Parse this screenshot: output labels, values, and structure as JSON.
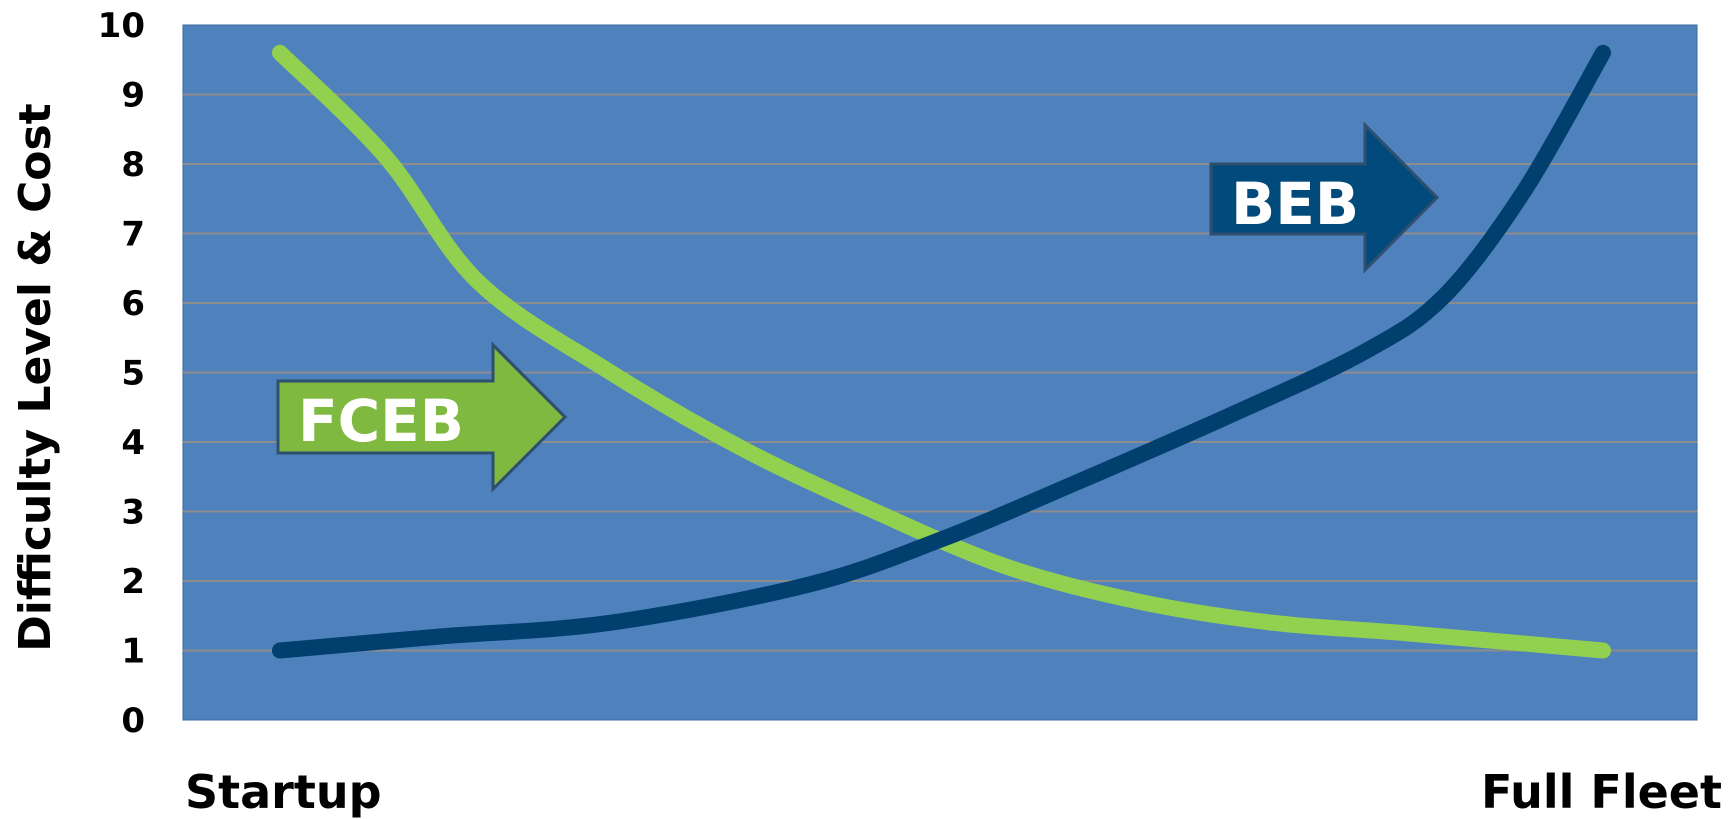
{
  "chart_data": {
    "type": "line",
    "ylabel": "Difficulty Level & Cost",
    "ylim": [
      0,
      10
    ],
    "y_ticks": [
      "0",
      "1",
      "2",
      "3",
      "4",
      "5",
      "6",
      "7",
      "8",
      "9",
      "10"
    ],
    "x_ticks": [
      "Startup",
      "Full Fleet"
    ],
    "xlim": [
      0,
      1
    ],
    "grid": true,
    "series": [
      {
        "name": "FCEB",
        "color": "#92d050",
        "points": [
          [
            0,
            9.6
          ],
          [
            0.08,
            8.1
          ],
          [
            0.15,
            6.3
          ],
          [
            0.25,
            5.0
          ],
          [
            0.35,
            3.9
          ],
          [
            0.45,
            3.0
          ],
          [
            0.55,
            2.2
          ],
          [
            0.65,
            1.7
          ],
          [
            0.75,
            1.4
          ],
          [
            0.85,
            1.25
          ],
          [
            1.0,
            1.0
          ]
        ]
      },
      {
        "name": "BEB",
        "color": "#003f6e",
        "points": [
          [
            0,
            1.0
          ],
          [
            0.12,
            1.2
          ],
          [
            0.25,
            1.4
          ],
          [
            0.4,
            1.95
          ],
          [
            0.5,
            2.6
          ],
          [
            0.6,
            3.4
          ],
          [
            0.72,
            4.4
          ],
          [
            0.82,
            5.3
          ],
          [
            0.88,
            6.1
          ],
          [
            0.94,
            7.6
          ],
          [
            1.0,
            9.6
          ]
        ]
      }
    ],
    "annotations": [
      {
        "label": "FCEB",
        "color": "#7fb93f"
      },
      {
        "label": "BEB",
        "color": "#004a7c"
      }
    ],
    "colors": {
      "plot_background": "#4f81bd",
      "grid": "#8c8c8c"
    }
  }
}
